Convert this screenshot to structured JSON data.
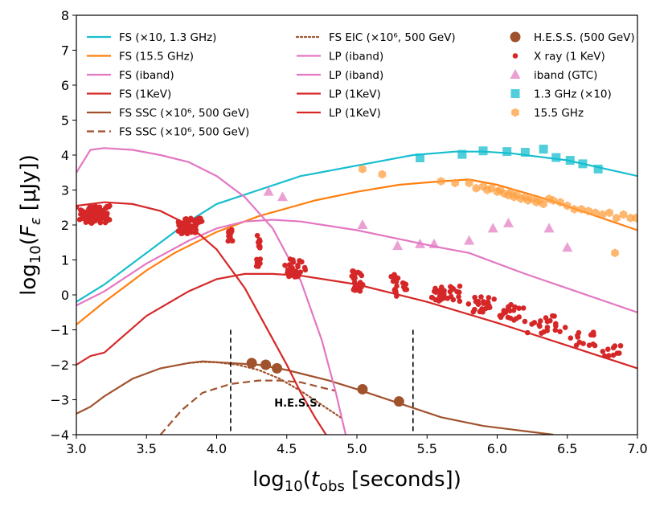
{
  "chart_data": {
    "type": "line",
    "xlabel": "log10(t_obs [seconds])",
    "ylabel": "log10(F_ε [μJy])",
    "xlim": [
      3.0,
      7.0
    ],
    "ylim": [
      -4,
      8
    ],
    "xticks": [
      3.0,
      3.5,
      4.0,
      4.5,
      5.0,
      5.5,
      6.0,
      6.5,
      7.0
    ],
    "yticks": [
      -4,
      -3,
      -2,
      -1,
      0,
      1,
      2,
      3,
      4,
      5,
      6,
      7,
      8
    ],
    "hess_marker": {
      "label": "H.E.S.S.",
      "x_start": 4.1,
      "x_end": 5.4,
      "y_top": -1.0
    },
    "legend": {
      "col1": [
        {
          "label": "FS (×10, 1.3 GHz)",
          "color": "#17becf",
          "style": "solid"
        },
        {
          "label": "FS (15.5 GHz)",
          "color": "#ff7f0e",
          "style": "solid"
        },
        {
          "label": "FS (iband)",
          "color": "#e377c2",
          "style": "solid"
        },
        {
          "label": "FS (1KeV)",
          "color": "#d62728",
          "style": "solid"
        },
        {
          "label": "FS SSC (×10⁶, 500 GeV)",
          "color": "#a0522d",
          "style": "solid"
        },
        {
          "label": "FS SSC (×10⁶, 500 GeV)",
          "color": "#a0522d",
          "style": "dashed"
        }
      ],
      "col2": [
        {
          "label": "FS EIC (×10⁶, 500 GeV)",
          "color": "#a0522d",
          "style": "dotted"
        },
        {
          "label": "LP (iband)",
          "color": "#e377c2",
          "style": "solid"
        },
        {
          "label": "LP (iband)",
          "color": "#e377c2",
          "style": "solid"
        },
        {
          "label": "LP (1KeV)",
          "color": "#d62728",
          "style": "solid"
        },
        {
          "label": "LP (1KeV)",
          "color": "#d62728",
          "style": "solid"
        }
      ],
      "col3": [
        {
          "label": "H.E.S.S. (500 GeV)",
          "color": "#a0522d",
          "marker": "circle-large"
        },
        {
          "label": "X ray (1 KeV)",
          "color": "#d62728",
          "marker": "circle-small"
        },
        {
          "label": "iband (GTC)",
          "color": "#e377c2",
          "marker": "triangle"
        },
        {
          "label": "1.3 GHz (×10)",
          "color": "#17becf",
          "marker": "square"
        },
        {
          "label": "15.5 GHz",
          "color": "#ff9f40",
          "marker": "hexagon"
        }
      ]
    },
    "series": [
      {
        "name": "FS (×10, 1.3 GHz)",
        "color": "#17becf",
        "style": "solid",
        "x": [
          3.0,
          3.2,
          3.5,
          3.8,
          4.0,
          4.3,
          4.6,
          5.0,
          5.4,
          5.7,
          5.9,
          6.1,
          6.5,
          7.0
        ],
        "y": [
          -0.2,
          0.3,
          1.2,
          2.1,
          2.6,
          3.0,
          3.4,
          3.7,
          4.0,
          4.1,
          4.1,
          4.05,
          3.85,
          3.4
        ]
      },
      {
        "name": "FS (15.5 GHz)",
        "color": "#ff7f0e",
        "style": "solid",
        "x": [
          3.0,
          3.2,
          3.5,
          3.7,
          4.0,
          4.3,
          4.7,
          5.0,
          5.3,
          5.6,
          5.8,
          6.0,
          6.3,
          6.6,
          7.0
        ],
        "y": [
          -0.85,
          -0.2,
          0.7,
          1.2,
          1.8,
          2.25,
          2.7,
          2.95,
          3.15,
          3.25,
          3.3,
          3.15,
          2.8,
          2.4,
          1.85
        ]
      },
      {
        "name": "FS (iband)",
        "color": "#e377c2",
        "style": "solid",
        "x": [
          3.0,
          3.2,
          3.5,
          3.8,
          4.0,
          4.2,
          4.4,
          4.6,
          5.0,
          5.3,
          5.6,
          5.8,
          6.2,
          6.6,
          7.0
        ],
        "y": [
          -0.3,
          0.1,
          0.9,
          1.55,
          1.9,
          2.1,
          2.15,
          2.1,
          1.85,
          1.6,
          1.35,
          1.2,
          0.6,
          0.05,
          -0.5
        ]
      },
      {
        "name": "FS (1KeV)",
        "color": "#d62728",
        "style": "solid",
        "x": [
          3.0,
          3.1,
          3.2,
          3.3,
          3.5,
          3.8,
          4.0,
          4.2,
          4.4,
          4.6,
          5.0,
          5.5,
          6.0,
          6.5,
          7.0
        ],
        "y": [
          -2.0,
          -1.75,
          -1.65,
          -1.3,
          -0.6,
          0.1,
          0.45,
          0.6,
          0.6,
          0.55,
          0.3,
          -0.2,
          -0.8,
          -1.45,
          -2.1
        ]
      },
      {
        "name": "FS SSC (×10⁶, 500 GeV)",
        "color": "#a0522d",
        "style": "solid",
        "x": [
          3.0,
          3.1,
          3.2,
          3.4,
          3.6,
          3.8,
          3.9,
          4.1,
          4.3,
          4.5,
          4.8,
          5.0,
          5.3,
          5.6,
          5.9,
          6.2,
          6.4
        ],
        "y": [
          -3.4,
          -3.2,
          -2.9,
          -2.4,
          -2.1,
          -1.95,
          -1.9,
          -1.95,
          -2.0,
          -2.15,
          -2.45,
          -2.7,
          -3.1,
          -3.5,
          -3.75,
          -3.9,
          -4.0
        ]
      },
      {
        "name": "FS SSC (×10⁶, 500 GeV)",
        "color": "#a0522d",
        "style": "dashed",
        "x": [
          3.6,
          3.75,
          3.9,
          4.1,
          4.3,
          4.45,
          4.6,
          4.75,
          4.85
        ],
        "y": [
          -4.0,
          -3.3,
          -2.8,
          -2.55,
          -2.45,
          -2.45,
          -2.5,
          -2.65,
          -2.75
        ]
      },
      {
        "name": "FS EIC (×10⁶, 500 GeV)",
        "color": "#a0522d",
        "style": "dotted",
        "x": [
          3.8,
          3.9,
          4.0,
          4.15,
          4.3,
          4.45,
          4.6,
          4.75,
          4.9
        ],
        "y": [
          -1.95,
          -1.92,
          -1.93,
          -2.0,
          -2.15,
          -2.4,
          -2.75,
          -3.15,
          -3.55
        ]
      },
      {
        "name": "LP (iband)",
        "color": "#e377c2",
        "style": "solid",
        "x": [
          3.0,
          3.1,
          3.2,
          3.4,
          3.6,
          3.8,
          4.0,
          4.2,
          4.4,
          4.6,
          4.75,
          4.85,
          4.92
        ],
        "y": [
          3.5,
          4.15,
          4.2,
          4.15,
          4.0,
          3.8,
          3.4,
          2.8,
          1.9,
          0.4,
          -1.3,
          -2.8,
          -4.0
        ]
      },
      {
        "name": "LP (1KeV)",
        "color": "#d62728",
        "style": "solid",
        "x": [
          3.0,
          3.2,
          3.4,
          3.6,
          3.8,
          4.0,
          4.2,
          4.35,
          4.5,
          4.6,
          4.7,
          4.78
        ],
        "y": [
          2.55,
          2.65,
          2.6,
          2.4,
          2.0,
          1.3,
          0.2,
          -0.9,
          -2.0,
          -2.8,
          -3.5,
          -4.0
        ]
      }
    ],
    "scatter": [
      {
        "name": "H.E.S.S. (500 GeV)",
        "color": "#a0522d",
        "marker": "circle-large",
        "x": [
          4.25,
          4.35,
          4.43,
          5.04,
          5.3
        ],
        "y": [
          -1.95,
          -2.0,
          -2.1,
          -2.7,
          -3.05
        ]
      },
      {
        "name": "iband (GTC)",
        "color": "#e377c2",
        "marker": "triangle",
        "x": [
          4.37,
          4.47,
          5.04,
          5.29,
          5.45,
          5.55,
          5.8,
          5.97,
          6.08,
          6.37,
          6.5
        ],
        "y": [
          2.95,
          2.8,
          2.0,
          1.4,
          1.45,
          1.45,
          1.55,
          1.9,
          2.05,
          1.9,
          1.35
        ]
      },
      {
        "name": "1.3 GHz (×10)",
        "color": "#17becf",
        "marker": "square",
        "x": [
          5.45,
          5.75,
          5.9,
          6.07,
          6.2,
          6.33,
          6.42,
          6.52,
          6.61,
          6.72
        ],
        "y": [
          3.92,
          4.02,
          4.12,
          4.1,
          4.08,
          4.17,
          3.93,
          3.85,
          3.75,
          3.6
        ]
      },
      {
        "name": "15.5 GHz",
        "color": "#ff9f40",
        "marker": "hexagon",
        "x": [
          5.04,
          5.18,
          5.6,
          5.7,
          5.8,
          5.85,
          5.9,
          5.93,
          5.96,
          6.0,
          6.02,
          6.05,
          6.08,
          6.1,
          6.12,
          6.14,
          6.17,
          6.2,
          6.22,
          6.25,
          6.28,
          6.3,
          6.33,
          6.37,
          6.4,
          6.45,
          6.5,
          6.55,
          6.6,
          6.65,
          6.7,
          6.75,
          6.8,
          6.85,
          6.9,
          6.95,
          6.99,
          6.84
        ],
        "y": [
          3.6,
          3.45,
          3.25,
          3.2,
          3.2,
          3.05,
          3.1,
          3.0,
          3.05,
          2.95,
          3.0,
          2.9,
          2.85,
          2.95,
          2.8,
          2.85,
          2.75,
          2.8,
          2.7,
          2.75,
          2.65,
          2.7,
          2.6,
          2.75,
          2.7,
          2.65,
          2.55,
          2.45,
          2.45,
          2.4,
          2.35,
          2.3,
          2.35,
          2.2,
          2.3,
          2.2,
          2.2,
          1.2
        ]
      }
    ],
    "xray": {
      "name": "X ray (1 KeV)",
      "color": "#d62728",
      "marker": "circle-small",
      "groups": [
        {
          "x0": 3.0,
          "x1": 3.25,
          "y0": 2.05,
          "y1": 2.55,
          "n": 90
        },
        {
          "x0": 3.7,
          "x1": 3.9,
          "y0": 1.75,
          "y1": 2.2,
          "n": 55
        },
        {
          "x0": 4.07,
          "x1": 4.12,
          "y0": 1.5,
          "y1": 1.9,
          "n": 14
        },
        {
          "x0": 4.28,
          "x1": 4.32,
          "y0": 0.8,
          "y1": 1.8,
          "n": 16
        },
        {
          "x0": 4.45,
          "x1": 4.65,
          "y0": 0.5,
          "y1": 1.05,
          "n": 26
        },
        {
          "x0": 4.95,
          "x1": 5.05,
          "y0": 0.1,
          "y1": 0.7,
          "n": 24
        },
        {
          "x0": 5.24,
          "x1": 5.3,
          "y0": -0.05,
          "y1": 0.6,
          "n": 14
        },
        {
          "x0": 5.32,
          "x1": 5.36,
          "y0": 0.0,
          "y1": 0.4,
          "n": 6
        },
        {
          "x0": 5.5,
          "x1": 5.75,
          "y0": -0.2,
          "y1": 0.3,
          "n": 32
        },
        {
          "x0": 5.78,
          "x1": 6.0,
          "y0": -0.5,
          "y1": -0.05,
          "n": 22
        },
        {
          "x0": 6.0,
          "x1": 6.2,
          "y0": -0.8,
          "y1": -0.25,
          "n": 20
        },
        {
          "x0": 6.2,
          "x1": 6.5,
          "y0": -1.1,
          "y1": -0.6,
          "n": 20
        },
        {
          "x0": 6.5,
          "x1": 6.75,
          "y0": -1.45,
          "y1": -1.0,
          "n": 14
        },
        {
          "x0": 6.75,
          "x1": 6.9,
          "y0": -1.85,
          "y1": -1.4,
          "n": 10
        }
      ]
    }
  }
}
